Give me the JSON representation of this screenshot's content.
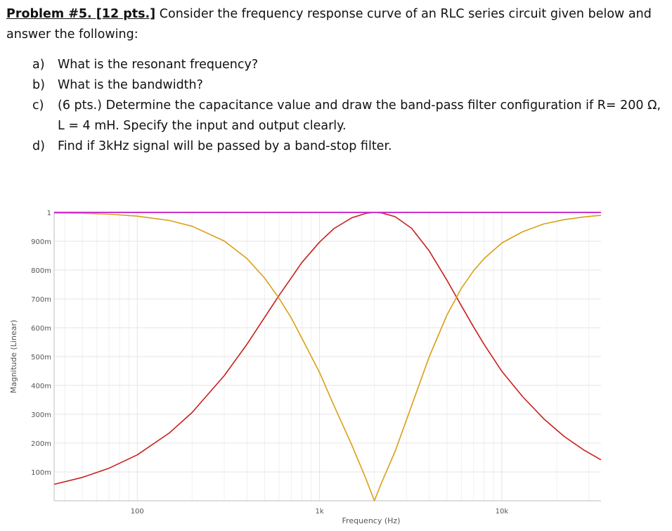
{
  "problem": {
    "heading": "Problem #5. [12 pts.]",
    "intro": "Consider the frequency response curve of an RLC series circuit given below and answer the following:",
    "questions": [
      {
        "label": "a)",
        "text": "What is the resonant frequency?"
      },
      {
        "label": "b)",
        "text": "What is the bandwidth?"
      },
      {
        "label": "c)",
        "text": "(6 pts.) Determine the capacitance value and draw the band-pass filter configuration if R= 200 Ω,",
        "cont": "L = 4 mH. Specify the input and output clearly."
      },
      {
        "label": "d)",
        "text": "Find if 3kHz signal will be passed by a band-stop filter."
      }
    ]
  },
  "colors": {
    "bandpass": "#c8201c",
    "bandstop": "#d9a017",
    "reference": "#cc33cc",
    "grid": "#e4e4e4",
    "axis_text": "#555555"
  },
  "chart_data": {
    "type": "line",
    "xscale": "log",
    "xlim": [
      35,
      35000
    ],
    "ylim": [
      0,
      1
    ],
    "xlabel": "Frequency (Hz)",
    "ylabel": "Magnitude (Linear)",
    "x_ticks": [
      {
        "value": 100,
        "label": "100"
      },
      {
        "value": 1000,
        "label": "1k"
      },
      {
        "value": 10000,
        "label": "10k"
      }
    ],
    "y_ticks": [
      {
        "value": 1,
        "label": "1"
      },
      {
        "value": 0.9,
        "label": "900m"
      },
      {
        "value": 0.8,
        "label": "800m"
      },
      {
        "value": 0.7,
        "label": "700m"
      },
      {
        "value": 0.6,
        "label": "600m"
      },
      {
        "value": 0.5,
        "label": "500m"
      },
      {
        "value": 0.4,
        "label": "400m"
      },
      {
        "value": 0.3,
        "label": "300m"
      },
      {
        "value": 0.2,
        "label": "200m"
      },
      {
        "value": 0.1,
        "label": "100m"
      }
    ],
    "grid": true,
    "series": [
      {
        "color_key": "bandpass",
        "x": [
          35,
          50,
          70,
          100,
          150,
          200,
          300,
          400,
          500,
          600,
          700,
          800,
          1000,
          1200,
          1500,
          1800,
          2000,
          2200,
          2600,
          3200,
          4000,
          5000,
          6000,
          7000,
          8000,
          10000,
          13000,
          17000,
          22000,
          28000,
          35000
        ],
        "y": [
          0.057,
          0.081,
          0.113,
          0.159,
          0.235,
          0.306,
          0.434,
          0.543,
          0.636,
          0.712,
          0.773,
          0.826,
          0.897,
          0.944,
          0.981,
          0.997,
          1.0,
          0.998,
          0.985,
          0.945,
          0.866,
          0.765,
          0.676,
          0.603,
          0.542,
          0.449,
          0.361,
          0.284,
          0.223,
          0.177,
          0.142
        ]
      },
      {
        "color_key": "bandstop",
        "x": [
          35,
          50,
          70,
          100,
          150,
          200,
          300,
          400,
          500,
          600,
          700,
          800,
          1000,
          1200,
          1500,
          1800,
          2000,
          2200,
          2600,
          3200,
          4000,
          5000,
          6000,
          7000,
          8000,
          10000,
          13000,
          17000,
          22000,
          28000,
          35000
        ],
        "y": [
          0.998,
          0.997,
          0.994,
          0.987,
          0.972,
          0.952,
          0.901,
          0.84,
          0.772,
          0.702,
          0.634,
          0.564,
          0.445,
          0.33,
          0.195,
          0.075,
          0.0,
          0.066,
          0.172,
          0.33,
          0.5,
          0.644,
          0.737,
          0.798,
          0.84,
          0.894,
          0.933,
          0.96,
          0.975,
          0.984,
          0.99
        ]
      },
      {
        "color_key": "reference",
        "x": [
          35,
          35000
        ],
        "y": [
          1,
          1
        ]
      }
    ]
  }
}
